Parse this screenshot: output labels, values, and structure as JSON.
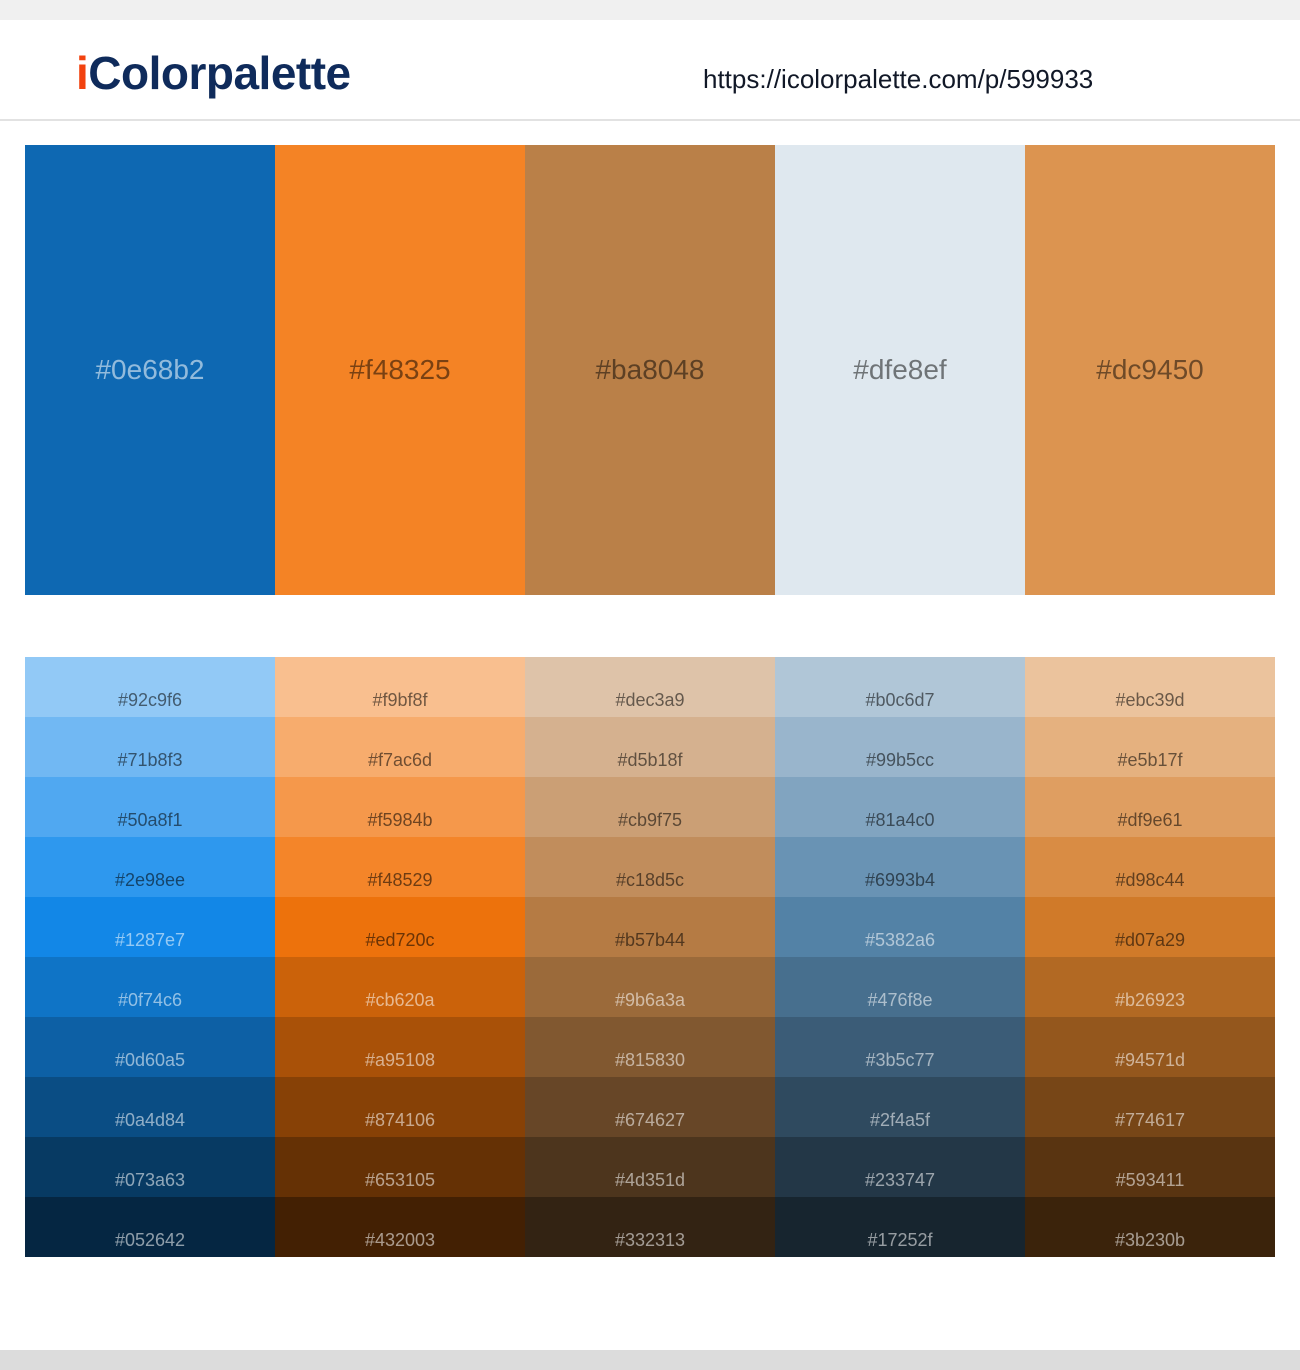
{
  "header": {
    "logo": "iColorpalette",
    "url": "https://icolorpalette.com/p/599933"
  },
  "palette": {
    "colors": [
      "#0e68b2",
      "#f48325",
      "#ba8048",
      "#dfe8ef",
      "#dc9450"
    ]
  },
  "shades": {
    "columns": [
      [
        "#92c9f6",
        "#71b8f3",
        "#50a8f1",
        "#2e98ee",
        "#1287e7",
        "#0f74c6",
        "#0d60a5",
        "#0a4d84",
        "#073a63",
        "#052642"
      ],
      [
        "#f9bf8f",
        "#f7ac6d",
        "#f5984b",
        "#f48529",
        "#ed720c",
        "#cb620a",
        "#a95108",
        "#874106",
        "#653105",
        "#432003"
      ],
      [
        "#dec3a9",
        "#d5b18f",
        "#cb9f75",
        "#c18d5c",
        "#b57b44",
        "#9b6a3a",
        "#815830",
        "#674627",
        "#4d351d",
        "#332313"
      ],
      [
        "#b0c6d7",
        "#99b5cc",
        "#81a4c0",
        "#6993b4",
        "#5382a6",
        "#476f8e",
        "#3b5c77",
        "#2f4a5f",
        "#233747",
        "#17252f"
      ],
      [
        "#ebc39d",
        "#e5b17f",
        "#df9e61",
        "#d98c44",
        "#d07a29",
        "#b26923",
        "#94571d",
        "#774617",
        "#593411",
        "#3b230b"
      ]
    ]
  }
}
